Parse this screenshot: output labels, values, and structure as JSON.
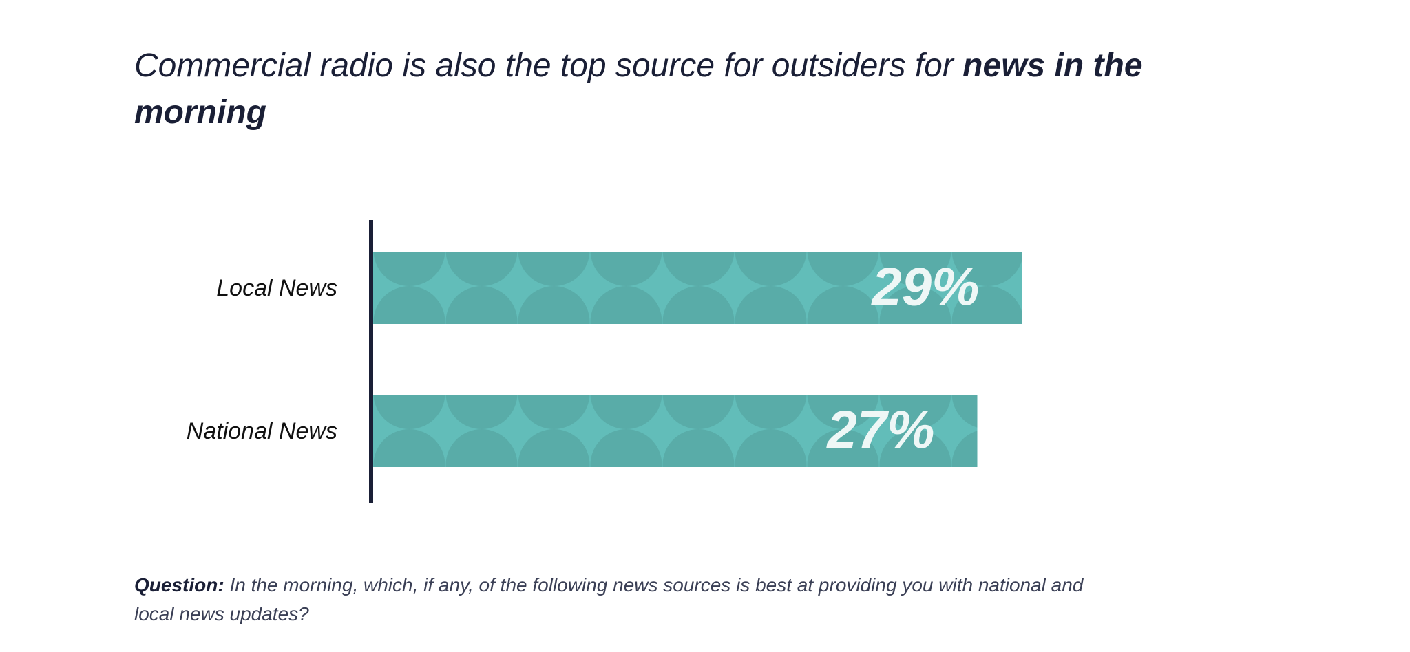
{
  "chart_data": {
    "type": "bar",
    "title": "Commercial radio is also the top source for outsiders for",
    "title_emphasis": "news in the morning",
    "categories": [
      "Local News",
      "National News"
    ],
    "values": [
      29,
      27
    ],
    "value_labels": [
      "29%",
      "27%"
    ],
    "color": "#62bdb9",
    "question_label": "Question:",
    "question": "In the morning, which, if any, of the following news sources is best at providing you with national and local news updates?"
  }
}
